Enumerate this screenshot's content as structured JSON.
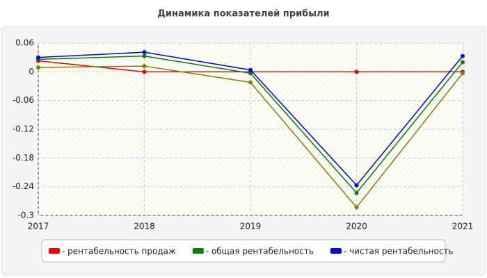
{
  "chart_data": {
    "type": "line",
    "title": "Динамика показателей прибыли",
    "x": [
      2017,
      2018,
      2019,
      2020,
      2021
    ],
    "xlim": [
      2017,
      2021
    ],
    "xticks": [
      2017,
      2018,
      2019,
      2020,
      2021
    ],
    "ylim": [
      -0.3,
      0.06
    ],
    "yticks": [
      0.06,
      0,
      -0.06,
      -0.12,
      -0.18,
      -0.24,
      -0.3
    ],
    "grid": true,
    "series": [
      {
        "name": "- рентабельность продаж",
        "color": "#ee0000",
        "values": [
          0.023,
          0,
          0,
          0,
          0
        ]
      },
      {
        "color": "#808000",
        "values": [
          0.009,
          0.012,
          -0.022,
          -0.283,
          -0.003
        ]
      },
      {
        "name": "- общая рентабельность",
        "color": "#008000",
        "values": [
          0.026,
          0.033,
          -0.003,
          -0.253,
          0.02
        ]
      },
      {
        "name": "- чистая рентабельность",
        "color": "#0000ee",
        "values": [
          0.03,
          0.041,
          0.004,
          -0.237,
          0.033
        ]
      }
    ]
  }
}
